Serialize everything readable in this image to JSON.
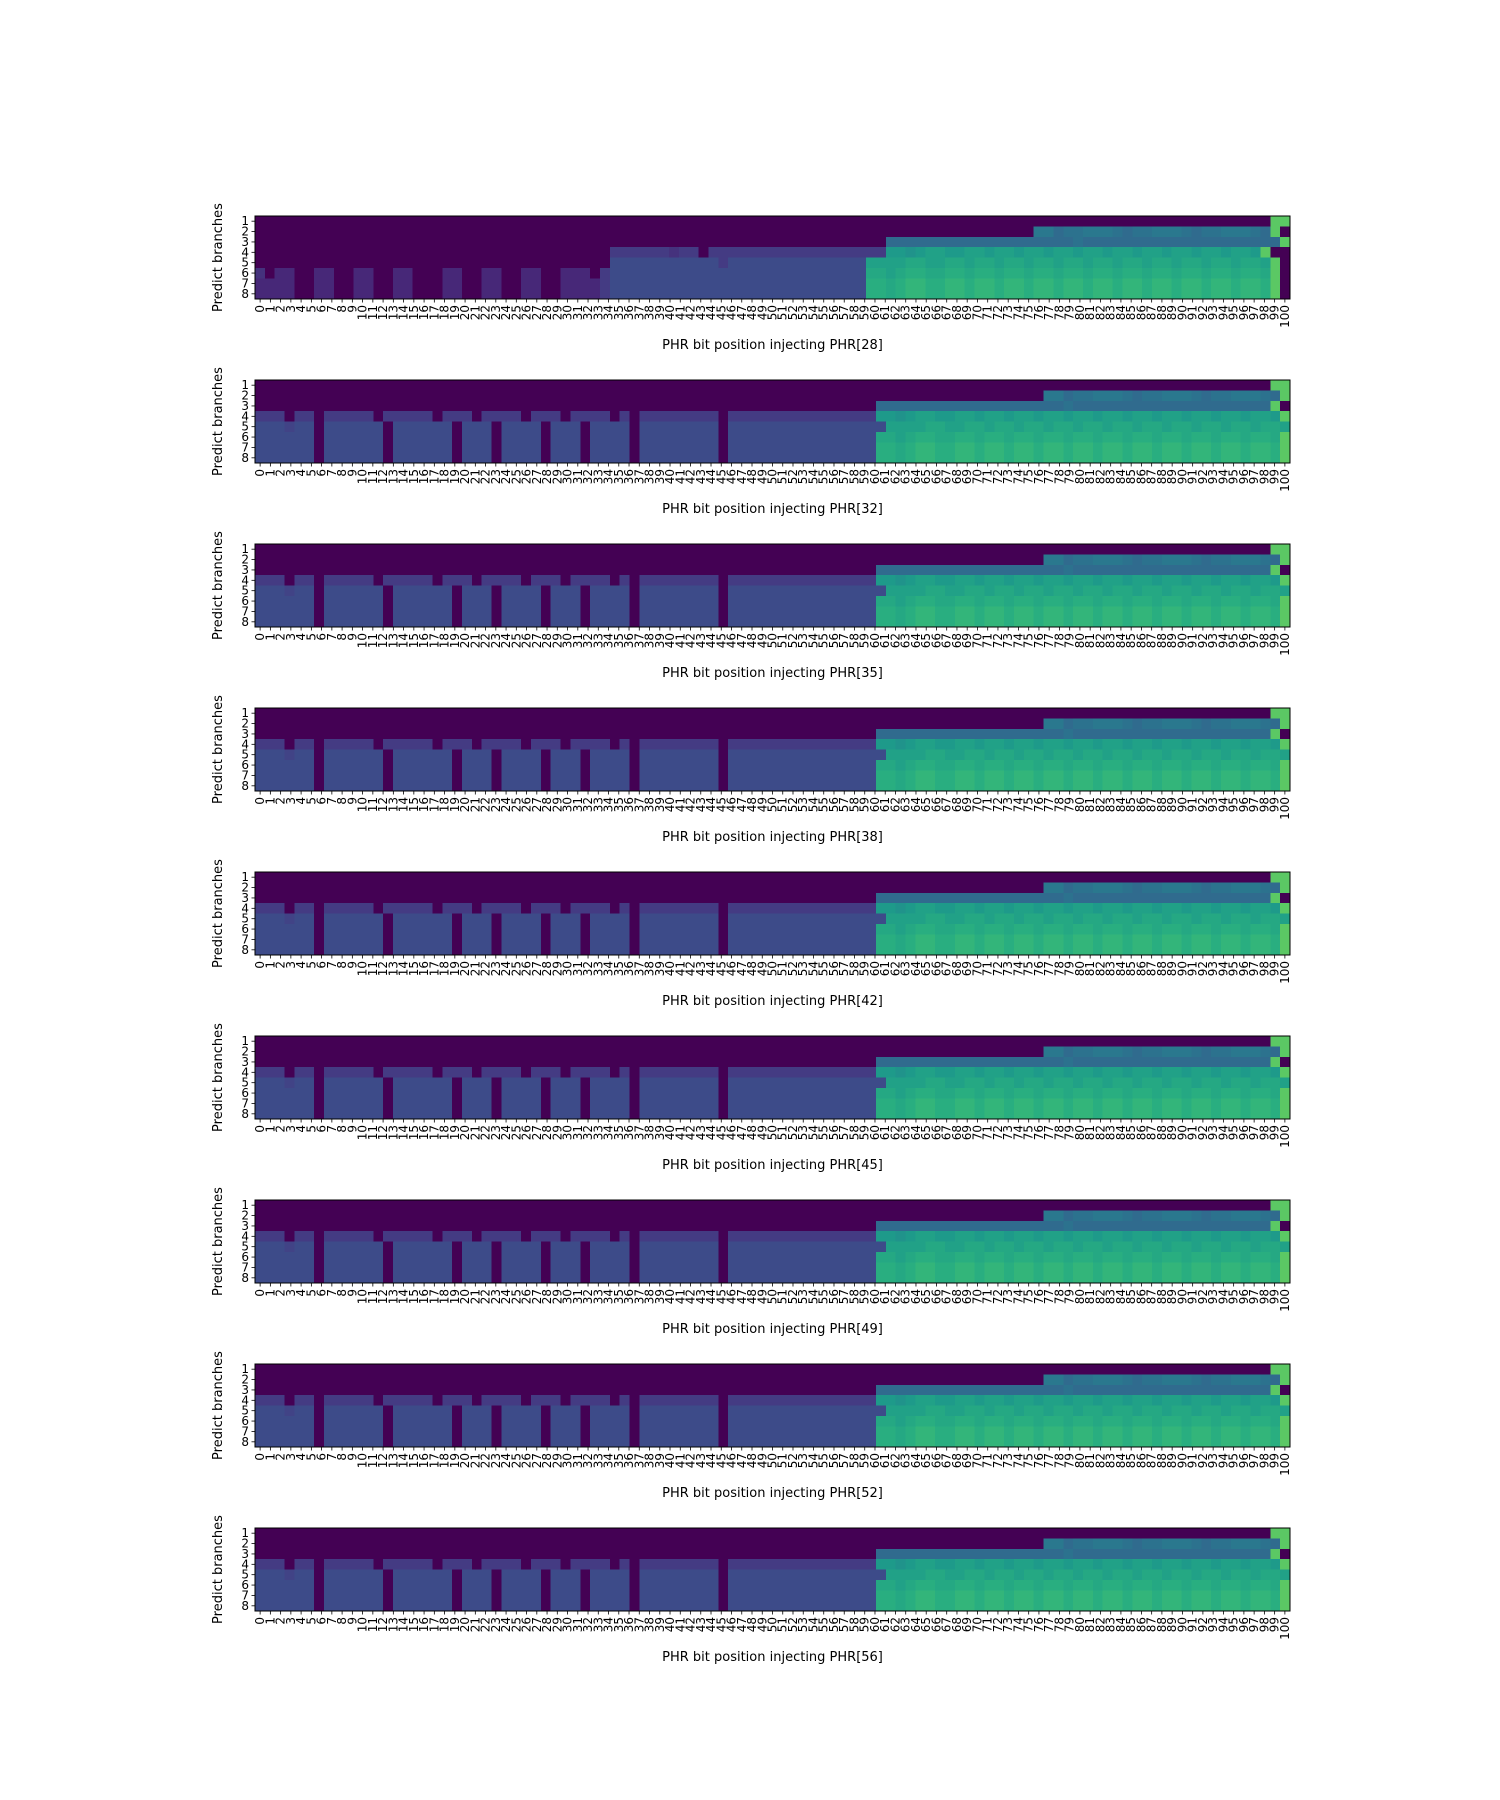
{
  "figure": {
    "ylabel": "Predict branches",
    "yticks": [
      "1",
      "2",
      "3",
      "4",
      "5",
      "6",
      "7",
      "8"
    ]
  },
  "chart_data": [
    {
      "type": "heatmap",
      "xlabel": "PHR bit position injecting PHR[28]",
      "ylabel": "Predict branches",
      "x": [
        0,
        100
      ],
      "y": [
        1,
        8
      ],
      "colormap": "viridis",
      "vmin": 0,
      "vmax": 1,
      "rows": [
        "0000000000000000000000000000000000000000000000000000000000000000000000000000000000000000000000000000000QQ",
        "0000000000000000000000000000000000000000000000000000000000000000000000000000000EECDDEEEDCDDEEEDCDDEEEDCQ",
        "0000000000000000000000000000000000000000000000000000000000000000CCCCCCCCCCCCCCCCCCCDCCCCCCCCCCCCCCCCCCCCQ",
        "0000000000000000000000000000000000006666665660666666666666666666JJIJKKJJKKJKKJKKJKKJKKJKKJKKJKKJKKJKKJQ",
        "00000000000000000000000000000000000088888888888688888888888888KKKKLLKKLLKLLKLLKLLKLLKLLKLLKLLKLLKLLKLLKQ",
        "50440044004400440004400440044004440688888888888888888888888888LLKLMMLLMMLMMLMMLMMLMMLMMLMMLMMLMMLMMLMMLQ",
        "44440044004400440004400440044004444688888888888888888888888888MMLMNNMMNNMNNMNNMNNMNNMNNMNNMNNMNNMNNMNNMQ",
        "44440044004400440004400440044004444688888888888888888888888888MMLMNNMMNNMNNMNNMNNMNNMNNMNNMNNMNNMNNMNNMQ"
      ]
    },
    {
      "type": "heatmap",
      "xlabel": "PHR bit position injecting PHR[32]",
      "ylabel": "Predict branches",
      "x": [
        0,
        100
      ],
      "y": [
        1,
        8
      ],
      "colormap": "viridis",
      "vmin": 0,
      "vmax": 1,
      "rows": [
        "0000000000000000000000000000000000000000000000000000000000000000000000000000000000000000000000000000000QQ",
        "00000000000000000000000000000000000000000000000000000000000000000000000000000000EECDDEEEDCDDEEEDCDDEEEDCQ",
        "000000000000000000000000000000000000000000000000000000000000000CCCCCCCCCCCCCCCCCCCDCCCCCCCCCCCCCCCCCCCCQ",
        "666066066666066666066606666066606666060666666660666666666666666JJIJKKJJKKJKKJKKJKKJKKJKKJKKJKKJKKJKKJKKJQ",
        "8887880888888088888808880888808880888808888888808888888888888888KKKKLLKKLLKLLKLLKLLKLLKLLKLLKLLKLLKLLKLLKQ",
        "888888088888808888880888088880888088880888888880888888888888888LLKLMMLLMMLMMLMMLMMLMMLMMLMMLMMLMMLMMLMMLQ",
        "888888088888808888880888088880888088880888888880888888888888888MMLMNNMMNNMNNMNNMNNMNNMNNMNNMNNMNNMNNMNNMQ",
        "888888088888808888880888088880888088880888888880888888888888888MMLMNNMMNNMNNMNNMNNMNNMNNMNNMNNMNNMNNMNNMQ"
      ]
    },
    {
      "type": "heatmap",
      "xlabel": "PHR bit position injecting PHR[35]",
      "ylabel": "Predict branches",
      "x": [
        0,
        100
      ],
      "y": [
        1,
        8
      ],
      "colormap": "viridis",
      "vmin": 0,
      "vmax": 1,
      "rows": [
        "0000000000000000000000000000000000000000000000000000000000000000000000000000000000000000000000000000000QQ",
        "00000000000000000000000000000000000000000000000000000000000000000000000000000000EECDDEEEDCDDEEEDCDDEEEDCQ",
        "000000000000000000000000000000000000000000000000000000000000000CCCCCCCCCCCCCCCCCCCDCCCCCCCCCCCCCCCCCCCCQ",
        "666066066666066666066606666066606666060666666660666666666666666JJIJKKJJKKJKKJKKJKKJKKJKKJKKJKKJKKJKKJKKJQ",
        "8887880888888088888808880888808880888808888888808888888888888888KKKKLLKKLLKLLKLLKLLKLLKLLKLLKLLKLLKLLKLLKQ",
        "888888088888808888880888088880888088880888888880888888888888888LLKLMMLLMMLMMLMMLMMLMMLMMLMMLMMLMMLMMLMMLQ",
        "888888088888808888880888088880888088880888888880888888888888888MMLMNNMMNNMNNMNNMNNMNNMNNMNNMNNMNNMNNMNNMQ",
        "888888088888808888880888088880888088880888888880888888888888888MMLMNNMMNNMNNMNNMNNMNNMNNMNNMNNMNNMNNMNNMQ"
      ]
    },
    {
      "type": "heatmap",
      "xlabel": "PHR bit position injecting PHR[38]",
      "ylabel": "Predict branches",
      "x": [
        0,
        100
      ],
      "y": [
        1,
        8
      ],
      "colormap": "viridis",
      "vmin": 0,
      "vmax": 1,
      "rows": [
        "0000000000000000000000000000000000000000000000000000000000000000000000000000000000000000000000000000000QQ",
        "00000000000000000000000000000000000000000000000000000000000000000000000000000000EECDDEEEDCDDEEEDCDDEEEDCQ",
        "000000000000000000000000000000000000000000000000000000000000000CCCCCCCCCCCCCCCCCCCDCCCCCCCCCCCCCCCCCCCCQ",
        "666066066666066666066606666066606666060666666660666666666666666JJIJKKJJKKJKKJKKJKKJKKJKKJKKJKKJKKJKKJKKJQ",
        "8887880888888088888808880888808880888808888888808888888888888888KKKKLLKKLLKLLKLLKLLKLLKLLKLLKLLKLLKLLKLLKQ",
        "888888088888808888880888088880888088880888888880888888888888888LLKLMMLLMMLMMLMMLMMLMMLMMLMMLMMLMMLMMLMMLQ",
        "888888088888808888880888088880888088880888888880888888888888888MMLMNNMMNNMNNMNNMNNMNNMNNMNNMNNMNNMNNMNNMQ",
        "888888088888808888880888088880888088880888888880888888888888888MMLMNNMMNNMNNMNNMNNMNNMNNMNNMNNMNNMNNMNNMQ"
      ]
    },
    {
      "type": "heatmap",
      "xlabel": "PHR bit position injecting PHR[42]",
      "ylabel": "Predict branches",
      "x": [
        0,
        100
      ],
      "y": [
        1,
        8
      ],
      "colormap": "viridis",
      "vmin": 0,
      "vmax": 1,
      "rows": [
        "0000000000000000000000000000000000000000000000000000000000000000000000000000000000000000000000000000000QQ",
        "00000000000000000000000000000000000000000000000000000000000000000000000000000000EECDDEEEDCDDEEEDCDDEEEDCQ",
        "000000000000000000000000000000000000000000000000000000000000000CCCCCCCCCCCCCCCCCCCDCCCCCCCCCCCCCCCCCCCCQ",
        "666066066666066666066606666066606666060666666660666666666666666JJIJKKJJKKJKKJKKJKKJKKJKKJKKJKKJKKJKKJKKJQ",
        "8887880888888088888808880888808880888808888888808888888888888888KKKKLLKKLLKLLKLLKLLKLLKLLKLLKLLKLLKLLKLLKQ",
        "888888088888808888880888088880888088880888888880888888888888888LLKLMMLLMMLMMLMMLMMLMMLMMLMMLMMLMMLMMLMMLQ",
        "888888088888808888880888088880888088880888888880888888888888888MMLMNNMMNNMNNMNNMNNMNNMNNMNNMNNMNNMNNMNNMQ",
        "888888088888808888880888088880888088880888888880888888888888888MMLMNNMMNNMNNMNNMNNMNNMNNMNNMNNMNNMNNMNNMQ"
      ]
    },
    {
      "type": "heatmap",
      "xlabel": "PHR bit position injecting PHR[45]",
      "ylabel": "Predict branches",
      "x": [
        0,
        100
      ],
      "y": [
        1,
        8
      ],
      "colormap": "viridis",
      "vmin": 0,
      "vmax": 1,
      "rows": [
        "0000000000000000000000000000000000000000000000000000000000000000000000000000000000000000000000000000000QQ",
        "00000000000000000000000000000000000000000000000000000000000000000000000000000000EECDDEEEDCDDEEEDCDDEEEDCQ",
        "000000000000000000000000000000000000000000000000000000000000000CCCCCCCCCCCCCCCCCCCDCCCCCCCCCCCCCCCCCCCCQ",
        "666066066666066666066606666066606666060666666660666666666666666JJIJKKJJKKJKKJKKJKKJKKJKKJKKJKKJKKJKKJKKJQ",
        "8887880888888088888808880888808880888808888888808888888888888888KKKKLLKKLLKLLKLLKLLKLLKLLKLLKLLKLLKLLKLLKQ",
        "888888088888808888880888088880888088880888888880888888888888888LLKLMMLLMMLMMLMMLMMLMMLMMLMMLMMLMMLMMLMMLQ",
        "888888088888808888880888088880888088880888888880888888888888888MMLMNNMMNNMNNMNNMNNMNNMNNMNNMNNMNNMNNMNNMQ",
        "888888088888808888880888088880888088880888888880888888888888888MMLMNNMMNNMNNMNNMNNMNNMNNMNNMNNMNNMNNMNNMQ"
      ]
    },
    {
      "type": "heatmap",
      "xlabel": "PHR bit position injecting PHR[49]",
      "ylabel": "Predict branches",
      "x": [
        0,
        100
      ],
      "y": [
        1,
        8
      ],
      "colormap": "viridis",
      "vmin": 0,
      "vmax": 1,
      "rows": [
        "0000000000000000000000000000000000000000000000000000000000000000000000000000000000000000000000000000000QQ",
        "00000000000000000000000000000000000000000000000000000000000000000000000000000000EECDDEEEDCDDEEEDCDDEEEDCQ",
        "000000000000000000000000000000000000000000000000000000000000000CCCCCCCCCCCCCCCCCCCDCCCCCCCCCCCCCCCCCCCCQ",
        "666066066666066666066606666066606666060666666660666666666666666JJIJKKJJKKJKKJKKJKKJKKJKKJKKJKKJKKJKKJKKJQ",
        "8887880888888088888808880888808880888808888888808888888888888888KKKKLLKKLLKLLKLLKLLKLLKLLKLLKLLKLLKLLKLLKQ",
        "888888088888808888880888088880888088880888888880888888888888888LLKLMMLLMMLMMLMMLMMLMMLMMLMMLMMLMMLMMLMMLQ",
        "888888088888808888880888088880888088880888888880888888888888888MMLMNNMMNNMNNMNNMNNMNNMNNMNNMNNMNNMNNMNNMQ",
        "888888088888808888880888088880888088880888888880888888888888888MMLMNNMMNNMNNMNNMNNMNNMNNMNNMNNMNNMNNMNNMQ"
      ]
    },
    {
      "type": "heatmap",
      "xlabel": "PHR bit position injecting PHR[52]",
      "ylabel": "Predict branches",
      "x": [
        0,
        100
      ],
      "y": [
        1,
        8
      ],
      "colormap": "viridis",
      "vmin": 0,
      "vmax": 1,
      "rows": [
        "0000000000000000000000000000000000000000000000000000000000000000000000000000000000000000000000000000000QQ",
        "00000000000000000000000000000000000000000000000000000000000000000000000000000000EECDDEEEDCDDEEEDCDDEEEDCQ",
        "000000000000000000000000000000000000000000000000000000000000000CCCCCCCCCCCCCCCCCCCDCCCCCCCCCCCCCCCCCCCCQ",
        "666066066666066666066606666066606666060666666660666666666666666JJIJKKJJKKJKKJKKJKKJKKJKKJKKJKKJKKJKKJKKJQ",
        "8887880888888088888808880888808880888808888888808888888888888888KKKKLLKKLLKLLKLLKLLKLLKLLKLLKLLKLLKLLKLLKQ",
        "888888088888808888880888088880888088880888888880888888888888888LLKLMMLLMMLMMLMMLMMLMMLMMLMMLMMLMMLMMLMMLQ",
        "888888088888808888880888088880888088880888888880888888888888888MMLMNNMMNNMNNMNNMNNMNNMNNMNNMNNMNNMNNMNNMQ",
        "888888088888808888880888088880888088880888888880888888888888888MMLMNNMMNNMNNMNNMNNMNNMNNMNNMNNMNNMNNMNNMQ"
      ]
    },
    {
      "type": "heatmap",
      "xlabel": "PHR bit position injecting PHR[56]",
      "ylabel": "Predict branches",
      "x": [
        0,
        100
      ],
      "y": [
        1,
        8
      ],
      "colormap": "viridis",
      "vmin": 0,
      "vmax": 1,
      "rows": [
        "0000000000000000000000000000000000000000000000000000000000000000000000000000000000000000000000000000000QQ",
        "00000000000000000000000000000000000000000000000000000000000000000000000000000000EECDDEEEDCDDEEEDCDDEEEDCQ",
        "000000000000000000000000000000000000000000000000000000000000000CCCCCCCCCCCCCCCCCCCDCCCCCCCCCCCCCCCCCCCCQ",
        "666066066666066666066606666066606666060666666660666666666666666JJIJKKJJKKJKKJKKJKKJKKJKKJKKJKKJKKJKKJKKJQ",
        "8887880888888088888808880888808880888808888888808888888888888888KKKKLLKKLLKLLKLLKLLKLLKLLKLLKLLKLLKLLKLLKQ",
        "888888088888808888880888088880888088880888888880888888888888888LLKLMMLLMMLMMLMMLMMLMMLMMLMMLMMLMMLMMLMMLQ",
        "888888088888808888880888088880888088880888888880888888888888888MMLMNNMMNNMNNMNNMNNMNNMNNMNNMNNMNNMNNMNNMQ",
        "888888088888808888880888088880888088880888888880888888888888888MMLMNNMMNNMNNMNNMNNMNNMNNMNNMNNMNNMNNMNNMQ"
      ]
    }
  ]
}
